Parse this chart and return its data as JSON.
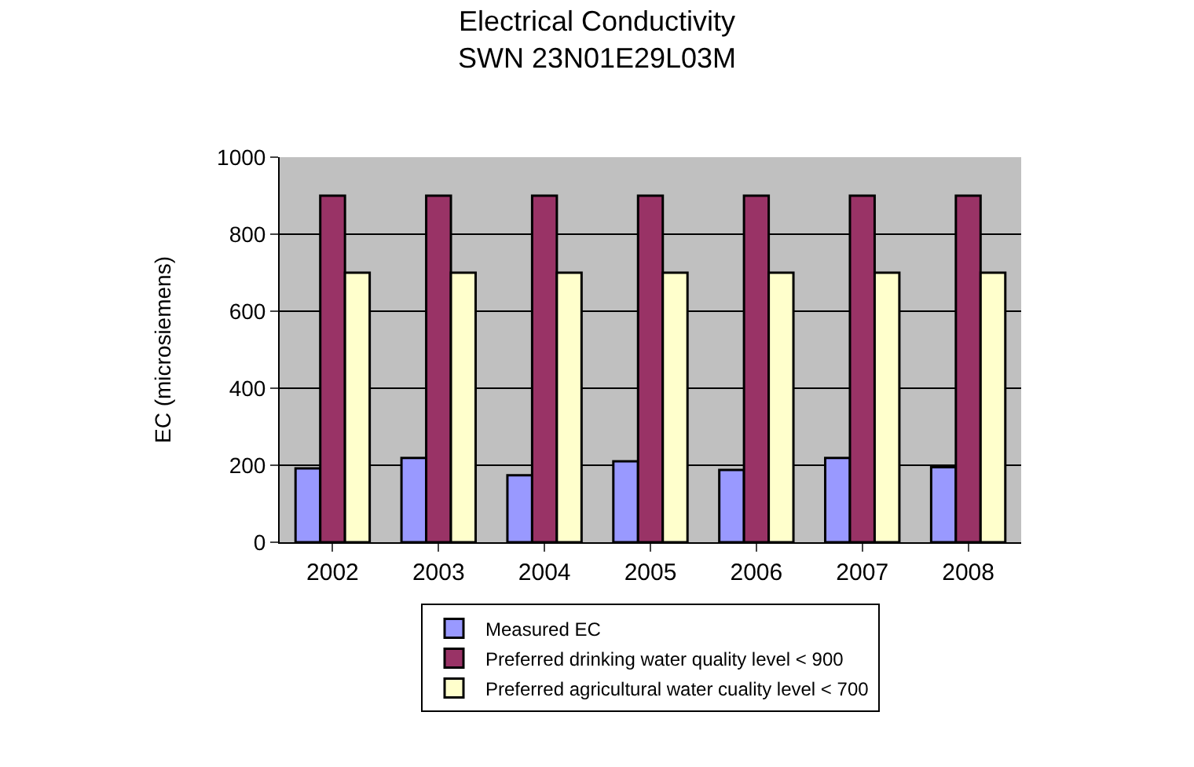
{
  "chart_data": {
    "type": "bar",
    "title": "Electrical Conductivity\nSWN 23N01E29L03M",
    "ylabel": "EC (microsiemens)",
    "categories": [
      "2002",
      "2003",
      "2004",
      "2005",
      "2006",
      "2007",
      "2008"
    ],
    "series": [
      {
        "name": "Measured EC",
        "color": "#9999ff",
        "values": [
          192,
          219,
          174,
          210,
          188,
          219,
          195
        ]
      },
      {
        "name": "Preferred drinking water quality level < 900",
        "color": "#993366",
        "values": [
          900,
          900,
          900,
          900,
          900,
          900,
          900
        ]
      },
      {
        "name": "Preferred agricultural water cuality level < 700",
        "color": "#ffffcc",
        "values": [
          700,
          700,
          700,
          700,
          700,
          700,
          700
        ]
      }
    ],
    "ylim": [
      0,
      1000
    ],
    "yticks": [
      0,
      200,
      400,
      600,
      800,
      1000
    ],
    "grid": "y",
    "legend": "bottom"
  }
}
